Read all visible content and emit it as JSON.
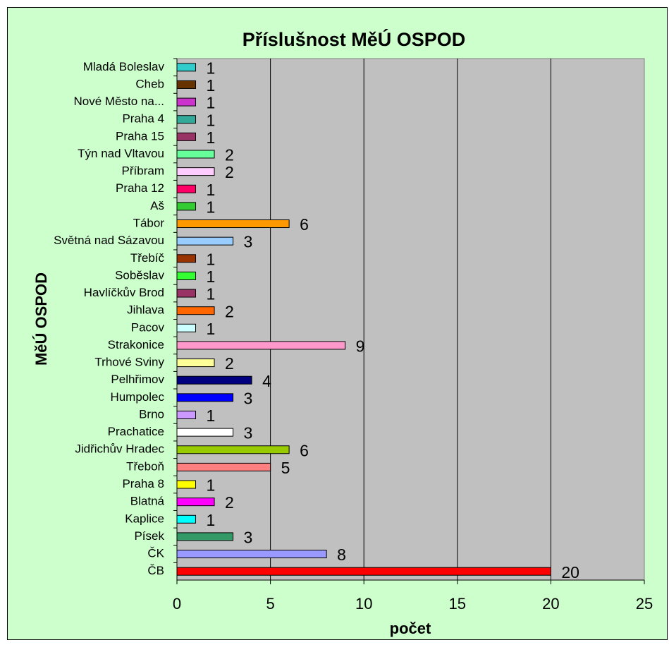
{
  "chart_data": {
    "type": "barh",
    "title": "Příslušnost MěÚ OSPOD",
    "xlabel": "počet",
    "ylabel": "MěÚ OSPOD",
    "categories": [
      "Mladá Boleslav",
      "Cheb",
      "Nové Město na...",
      "Praha 4",
      "Praha 15",
      "Týn nad Vltavou",
      "Příbram",
      "Praha 12",
      "Aš",
      "Tábor",
      "Světná nad Sázavou",
      "Třebíč",
      "Soběslav",
      "Havlíčkův Brod",
      "Jihlava",
      "Pacov",
      "Strakonice",
      "Trhové Sviny",
      "Pelhřimov",
      "Humpolec",
      "Brno",
      "Prachatice",
      "Jidřichův Hradec",
      "Třeboň",
      "Praha 8",
      "Blatná",
      "Kaplice",
      "Písek",
      "ČK",
      "ČB"
    ],
    "values": [
      1,
      1,
      1,
      1,
      1,
      2,
      2,
      1,
      1,
      6,
      3,
      1,
      1,
      1,
      2,
      1,
      9,
      2,
      4,
      3,
      1,
      3,
      6,
      5,
      1,
      2,
      1,
      3,
      8,
      20
    ],
    "colors": [
      "#33cccc",
      "#663300",
      "#cc33cc",
      "#33aa99",
      "#993366",
      "#66ff99",
      "#ffccff",
      "#ff0066",
      "#33cc33",
      "#ff9900",
      "#99ccff",
      "#993300",
      "#33ff33",
      "#993366",
      "#ff6600",
      "#ccffff",
      "#ff99cc",
      "#ffff99",
      "#000080",
      "#0000ff",
      "#cc99ff",
      "#ffffff",
      "#99cc00",
      "#ff8080",
      "#ffff00",
      "#ff00ff",
      "#00ffff",
      "#339966",
      "#9999ff",
      "#ff0000"
    ],
    "xlim": [
      0,
      25
    ],
    "xticks": [
      0,
      5,
      10,
      15,
      20,
      25
    ],
    "grid": true,
    "plot_background": "#c0c0c0",
    "background": "#ccffcc"
  }
}
